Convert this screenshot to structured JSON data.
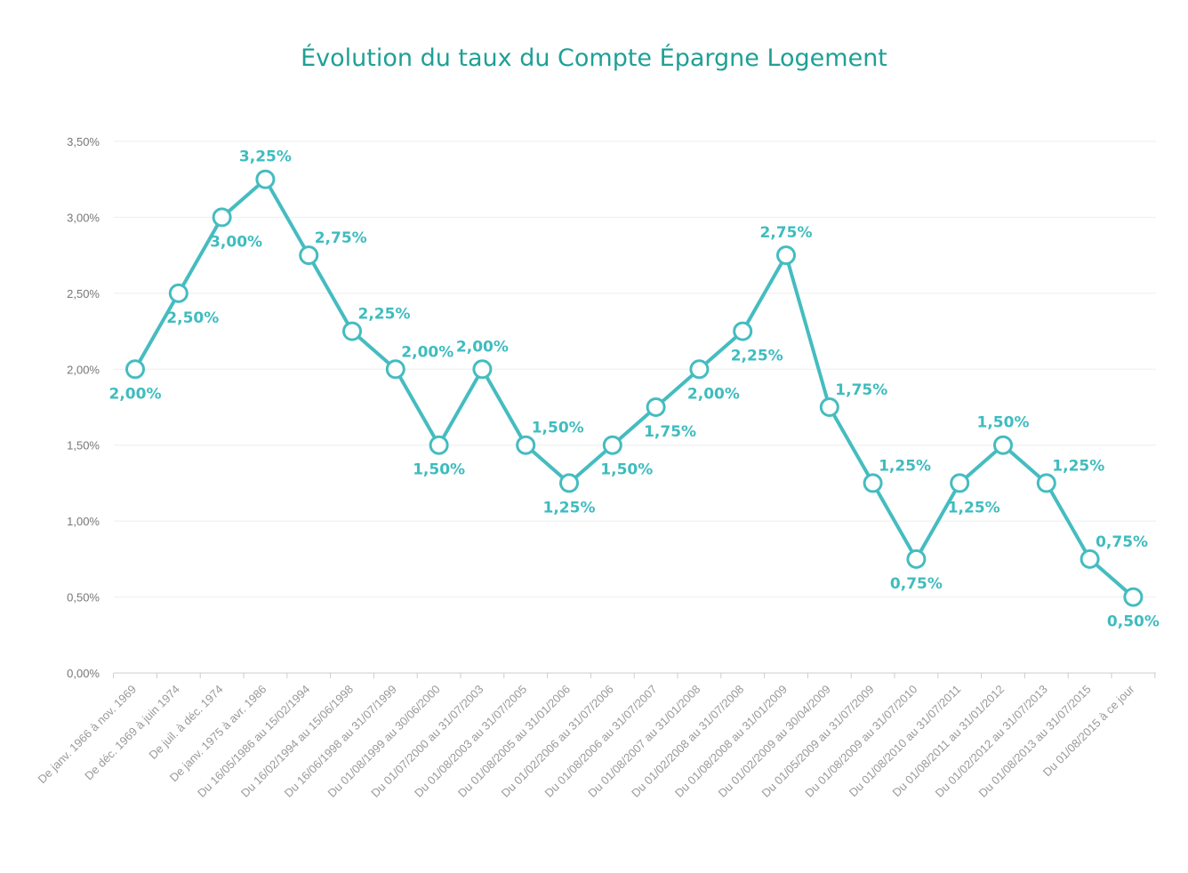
{
  "colors": {
    "title": "#1fa095",
    "line": "#45bcc0",
    "marker_fill": "#ffffff",
    "label": "#3fbcbf",
    "grid": "#eeeeee",
    "axis": "#cccccc"
  },
  "chart_data": {
    "type": "line",
    "title": "Évolution du taux du Compte Épargne Logement",
    "xlabel": "",
    "ylabel": "",
    "ylim": [
      0,
      3.5
    ],
    "grid": true,
    "y_ticks": [
      "0,00%",
      "0,50%",
      "1,00%",
      "1,50%",
      "2,00%",
      "2,50%",
      "3,00%",
      "3,50%"
    ],
    "categories": [
      "De janv. 1966 à nov. 1969",
      "De déc. 1969 à juin 1974",
      "De juil. à déc. 1974",
      "De janv. 1975 à avr. 1986",
      "Du 16/05/1986 au 15/02/1994",
      "Du 16/02/1994 au 15/06/1998",
      "Du 16/06/1998 au 31/07/1999",
      "Du 01/08/1999 au 30/06/2000",
      "Du 01/07/2000 au 31/07/2003",
      "Du 01/08/2003 au 31/07/2005",
      "Du 01/08/2005 au 31/01/2006",
      "Du 01/02/2006 au 31/07/2006",
      "Du 01/08/2006 au 31/07/2007",
      "Du 01/08/2007 au 31/01/2008",
      "Du 01/02/2008 au 31/07/2008",
      "Du 01/08/2008 au 31/01/2009",
      "Du 01/02/2009 au 30/04/2009",
      "Du 01/05/2009 au 31/07/2009",
      "Du 01/08/2009 au 31/07/2010",
      "Du 01/08/2010 au 31/07/2011",
      "Du 01/08/2011 au 31/01/2012",
      "Du 01/02/2012 au 31/07/2013",
      "Du 01/08/2013 au 31/07/2015",
      "Du 01/08/2015 à ce jour"
    ],
    "values": [
      2.0,
      2.5,
      3.0,
      3.25,
      2.75,
      2.25,
      2.0,
      1.5,
      2.0,
      1.5,
      1.25,
      1.5,
      1.75,
      2.0,
      2.25,
      2.75,
      1.75,
      1.25,
      0.75,
      1.25,
      1.5,
      1.25,
      0.75,
      0.5
    ],
    "data_labels": [
      "2,00%",
      "2,50%",
      "3,00%",
      "3,25%",
      "2,75%",
      "2,25%",
      "2,00%",
      "1,50%",
      "2,00%",
      "1,50%",
      "1,25%",
      "1,50%",
      "1,75%",
      "2,00%",
      "2,25%",
      "2,75%",
      "1,75%",
      "1,25%",
      "0,75%",
      "1,25%",
      "1,50%",
      "1,25%",
      "0,75%",
      "0,50%"
    ]
  }
}
